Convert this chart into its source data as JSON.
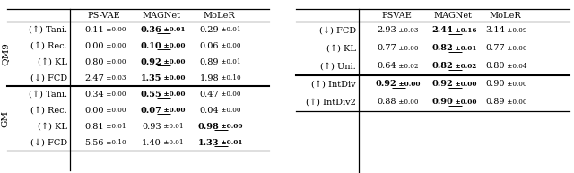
{
  "left_table": {
    "col_headers": [
      "",
      "PS-VAE",
      "MAGNet",
      "MoLeR"
    ],
    "row_groups": [
      {
        "group_label": "QM9",
        "rows": [
          {
            "label": "(↑) Tani.",
            "vals": [
              [
                "0.11",
                "0.00",
                false,
                false
              ],
              [
                "0.36",
                "0.01",
                true,
                true
              ],
              [
                "0.29",
                "0.01",
                false,
                false
              ]
            ]
          },
          {
            "label": "(↑) Rec.",
            "vals": [
              [
                "0.00",
                "0.00",
                false,
                false
              ],
              [
                "0.10",
                "0.00",
                true,
                true
              ],
              [
                "0.06",
                "0.00",
                false,
                false
              ]
            ]
          },
          {
            "label": "(↑) KL",
            "vals": [
              [
                "0.80",
                "0.00",
                false,
                false
              ],
              [
                "0.92",
                "0.00",
                true,
                true
              ],
              [
                "0.89",
                "0.01",
                false,
                false
              ]
            ]
          },
          {
            "label": "(↓) FCD",
            "vals": [
              [
                "2.47",
                "0.03",
                false,
                false
              ],
              [
                "1.35",
                "0.00",
                true,
                true
              ],
              [
                "1.98",
                "0.10",
                false,
                false
              ]
            ]
          }
        ]
      },
      {
        "group_label": "GM",
        "rows": [
          {
            "label": "(↑) Tani.",
            "vals": [
              [
                "0.34",
                "0.00",
                false,
                false
              ],
              [
                "0.55",
                "0.00",
                true,
                true
              ],
              [
                "0.47",
                "0.00",
                false,
                false
              ]
            ]
          },
          {
            "label": "(↑) Rec.",
            "vals": [
              [
                "0.00",
                "0.00",
                false,
                false
              ],
              [
                "0.07",
                "0.00",
                true,
                true
              ],
              [
                "0.04",
                "0.00",
                false,
                false
              ]
            ]
          },
          {
            "label": "(↑) KL",
            "vals": [
              [
                "0.81",
                "0.01",
                false,
                false
              ],
              [
                "0.93",
                "0.01",
                false,
                false
              ],
              [
                "0.98",
                "0.00",
                true,
                true
              ]
            ]
          },
          {
            "label": "(↓) FCD",
            "vals": [
              [
                "5.56",
                "0.10",
                false,
                false
              ],
              [
                "1.40",
                "0.01",
                false,
                false
              ],
              [
                "1.33",
                "0.01",
                true,
                true
              ]
            ]
          }
        ]
      }
    ]
  },
  "right_table": {
    "col_headers": [
      "",
      "PSVAE",
      "MAGNet",
      "MoLeR"
    ],
    "row_groups": [
      {
        "group_label": "",
        "rows": [
          {
            "label": "(↓) FCD",
            "vals": [
              [
                "2.93",
                "0.03",
                false,
                false
              ],
              [
                "2.44",
                "0.16",
                true,
                true
              ],
              [
                "3.14",
                "0.09",
                false,
                false
              ]
            ]
          },
          {
            "label": "(↑) KL",
            "vals": [
              [
                "0.77",
                "0.00",
                false,
                false
              ],
              [
                "0.82",
                "0.01",
                true,
                true
              ],
              [
                "0.77",
                "0.00",
                false,
                false
              ]
            ]
          },
          {
            "label": "(↑) Uni.",
            "vals": [
              [
                "0.64",
                "0.02",
                false,
                false
              ],
              [
                "0.82",
                "0.02",
                true,
                true
              ],
              [
                "0.80",
                "0.04",
                false,
                false
              ]
            ]
          }
        ]
      },
      {
        "group_label": "",
        "rows": [
          {
            "label": "(↑) IntDiv",
            "vals": [
              [
                "0.92",
                "0.00",
                true,
                true
              ],
              [
                "0.92",
                "0.00",
                true,
                true
              ],
              [
                "0.90",
                "0.00",
                false,
                false
              ]
            ]
          },
          {
            "label": "(↑) IntDiv2",
            "vals": [
              [
                "0.88",
                "0.00",
                false,
                false
              ],
              [
                "0.90",
                "0.00",
                true,
                true
              ],
              [
                "0.89",
                "0.00",
                false,
                false
              ]
            ]
          }
        ]
      }
    ]
  }
}
